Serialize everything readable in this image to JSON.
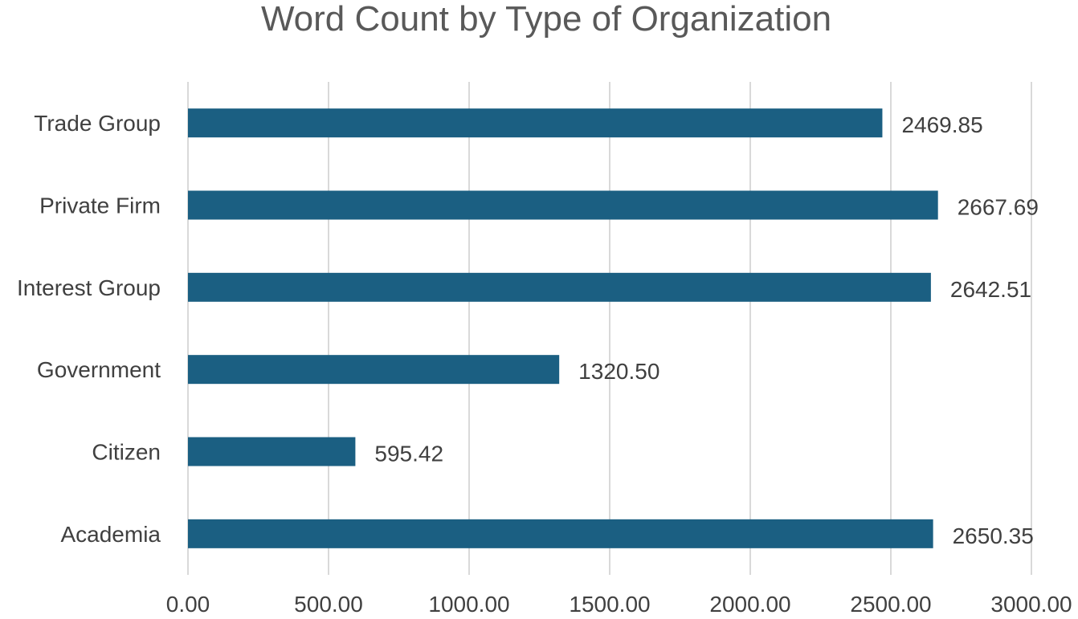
{
  "chart_data": {
    "type": "bar",
    "orientation": "horizontal",
    "title": "Word Count by Type of Organization",
    "categories": [
      "Trade Group",
      "Private Firm",
      "Interest Group",
      "Government",
      "Citizen",
      "Academia"
    ],
    "values": [
      2469.85,
      2667.69,
      2642.51,
      1320.5,
      595.42,
      2650.35
    ],
    "value_labels": [
      "2469.85",
      "2667.69",
      "2642.51",
      "1320.50",
      "595.42",
      "2650.35"
    ],
    "xlim": [
      0,
      3000
    ],
    "x_ticks": [
      0,
      500,
      1000,
      1500,
      2000,
      2500,
      3000
    ],
    "x_tick_labels": [
      "0.00",
      "500.00",
      "1000.00",
      "1500.00",
      "2000.00",
      "2500.00",
      "3000.00"
    ],
    "grid": "vertical",
    "bar_color": "#1b5f82",
    "grid_color": "#d9d9d9",
    "text_color": "#404040"
  }
}
